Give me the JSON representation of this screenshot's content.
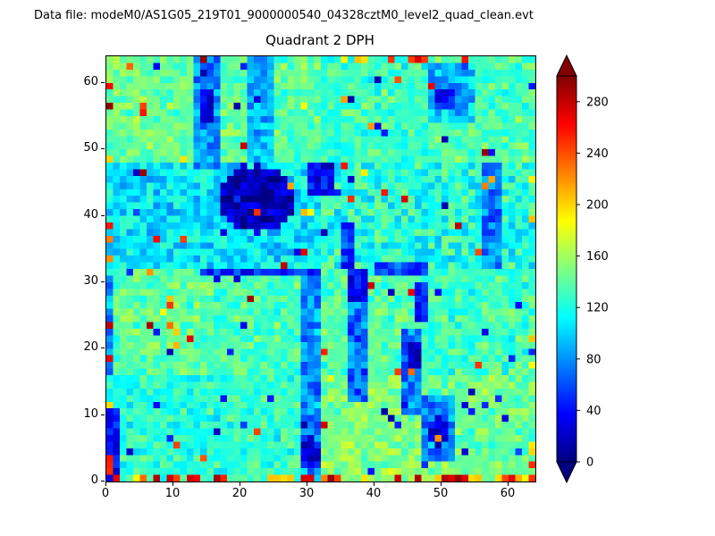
{
  "header": {
    "data_file_label": "Data file: modeM0/AS1G05_219T01_9000000540_04328cztM0_level2_quad_clean.evt"
  },
  "chart_data": {
    "type": "heatmap",
    "title": "Quadrant 2 DPH",
    "x_ticks": [
      0,
      10,
      20,
      30,
      40,
      50,
      60
    ],
    "y_ticks": [
      0,
      10,
      20,
      30,
      40,
      50,
      60
    ],
    "x_range": [
      0,
      64
    ],
    "y_range": [
      0,
      64
    ],
    "grid_size": 64,
    "colormap": "jet",
    "colorbar": {
      "ticks": [
        0,
        40,
        80,
        120,
        160,
        200,
        240,
        280
      ],
      "vmin": 0,
      "vmax": 300,
      "over_color": "#800000",
      "under_color": "#000080"
    },
    "heatmap_model": {
      "seed": 7,
      "base_value": 138,
      "noise_amplitude": 20,
      "module_variation": {
        "period": 16,
        "amplitude": 14
      },
      "features": [
        {
          "shape": "rect",
          "x0": 0,
          "x1": 31,
          "y0": 32,
          "y1": 47,
          "value": 105,
          "jitter": 26
        },
        {
          "shape": "rect",
          "x0": 32,
          "x1": 63,
          "y0": 32,
          "y1": 47,
          "value": 122,
          "jitter": 30
        },
        {
          "shape": "ellipse",
          "cx": 22,
          "cy": 42,
          "rx": 5.5,
          "ry": 5,
          "value": 18,
          "jitter": 22
        },
        {
          "shape": "rect",
          "x0": 30,
          "x1": 33,
          "y0": 43,
          "y1": 47,
          "value": 35,
          "jitter": 25
        },
        {
          "shape": "rect",
          "x0": 35,
          "x1": 36,
          "y0": 32,
          "y1": 38,
          "value": 55,
          "jitter": 25
        },
        {
          "shape": "rect",
          "x0": 29,
          "x1": 31,
          "y0": 0,
          "y1": 31,
          "value": 80,
          "jitter": 30
        },
        {
          "shape": "ellipse",
          "cx": 30,
          "cy": 4,
          "rx": 1.8,
          "ry": 2.2,
          "value": 22,
          "jitter": 15
        },
        {
          "shape": "rect",
          "x0": 36,
          "x1": 38,
          "y0": 12,
          "y1": 31,
          "value": 70,
          "jitter": 28
        },
        {
          "shape": "rect",
          "x0": 36,
          "x1": 38,
          "y0": 27,
          "y1": 31,
          "value": 38,
          "jitter": 20
        },
        {
          "shape": "rect",
          "x0": 44,
          "x1": 46,
          "y0": 10,
          "y1": 22,
          "value": 75,
          "jitter": 28
        },
        {
          "shape": "rect",
          "x0": 45,
          "x1": 46,
          "y0": 17,
          "y1": 20,
          "value": 18,
          "jitter": 14
        },
        {
          "shape": "rect",
          "x0": 46,
          "x1": 47,
          "y0": 24,
          "y1": 29,
          "value": 45,
          "jitter": 20
        },
        {
          "shape": "rect",
          "x0": 47,
          "x1": 51,
          "y0": 3,
          "y1": 12,
          "value": 78,
          "jitter": 26
        },
        {
          "shape": "ellipse",
          "cx": 49,
          "cy": 7,
          "rx": 1.6,
          "ry": 2,
          "value": 30,
          "jitter": 18
        },
        {
          "shape": "rect",
          "x0": 13,
          "x1": 16,
          "y0": 47,
          "y1": 63,
          "value": 78,
          "jitter": 26
        },
        {
          "shape": "rect",
          "x0": 14,
          "x1": 15,
          "y0": 54,
          "y1": 58,
          "value": 28,
          "jitter": 16
        },
        {
          "shape": "rect",
          "x0": 21,
          "x1": 24,
          "y0": 48,
          "y1": 63,
          "value": 92,
          "jitter": 26
        },
        {
          "shape": "rect",
          "x0": 48,
          "x1": 54,
          "y0": 54,
          "y1": 62,
          "value": 95,
          "jitter": 28
        },
        {
          "shape": "rect",
          "x0": 49,
          "x1": 51,
          "y0": 56,
          "y1": 58,
          "value": 40,
          "jitter": 18
        },
        {
          "shape": "rect",
          "x0": 56,
          "x1": 58,
          "y0": 32,
          "y1": 47,
          "value": 72,
          "jitter": 26
        },
        {
          "shape": "rect",
          "x0": 0,
          "x1": 1,
          "y0": 0,
          "y1": 10,
          "value": 40,
          "jitter": 22
        },
        {
          "shape": "rect",
          "x0": 0,
          "x1": 0,
          "y0": 16,
          "y1": 30,
          "value": 85,
          "jitter": 25
        },
        {
          "shape": "rect",
          "x0": 14,
          "x1": 31,
          "y0": 31,
          "y1": 31,
          "value": 48,
          "jitter": 22
        },
        {
          "shape": "rect",
          "x0": 40,
          "x1": 47,
          "y0": 31,
          "y1": 32,
          "value": 60,
          "jitter": 24
        }
      ],
      "hot_edges": {
        "bottom_row_probability": 0.55,
        "other_edge_probability": 0.13,
        "value_min": 185,
        "value_max": 295
      },
      "scatter": {
        "hot_probability": 0.009,
        "dark_probability": 0.016,
        "dark_min": 10,
        "dark_max": 60
      }
    }
  }
}
